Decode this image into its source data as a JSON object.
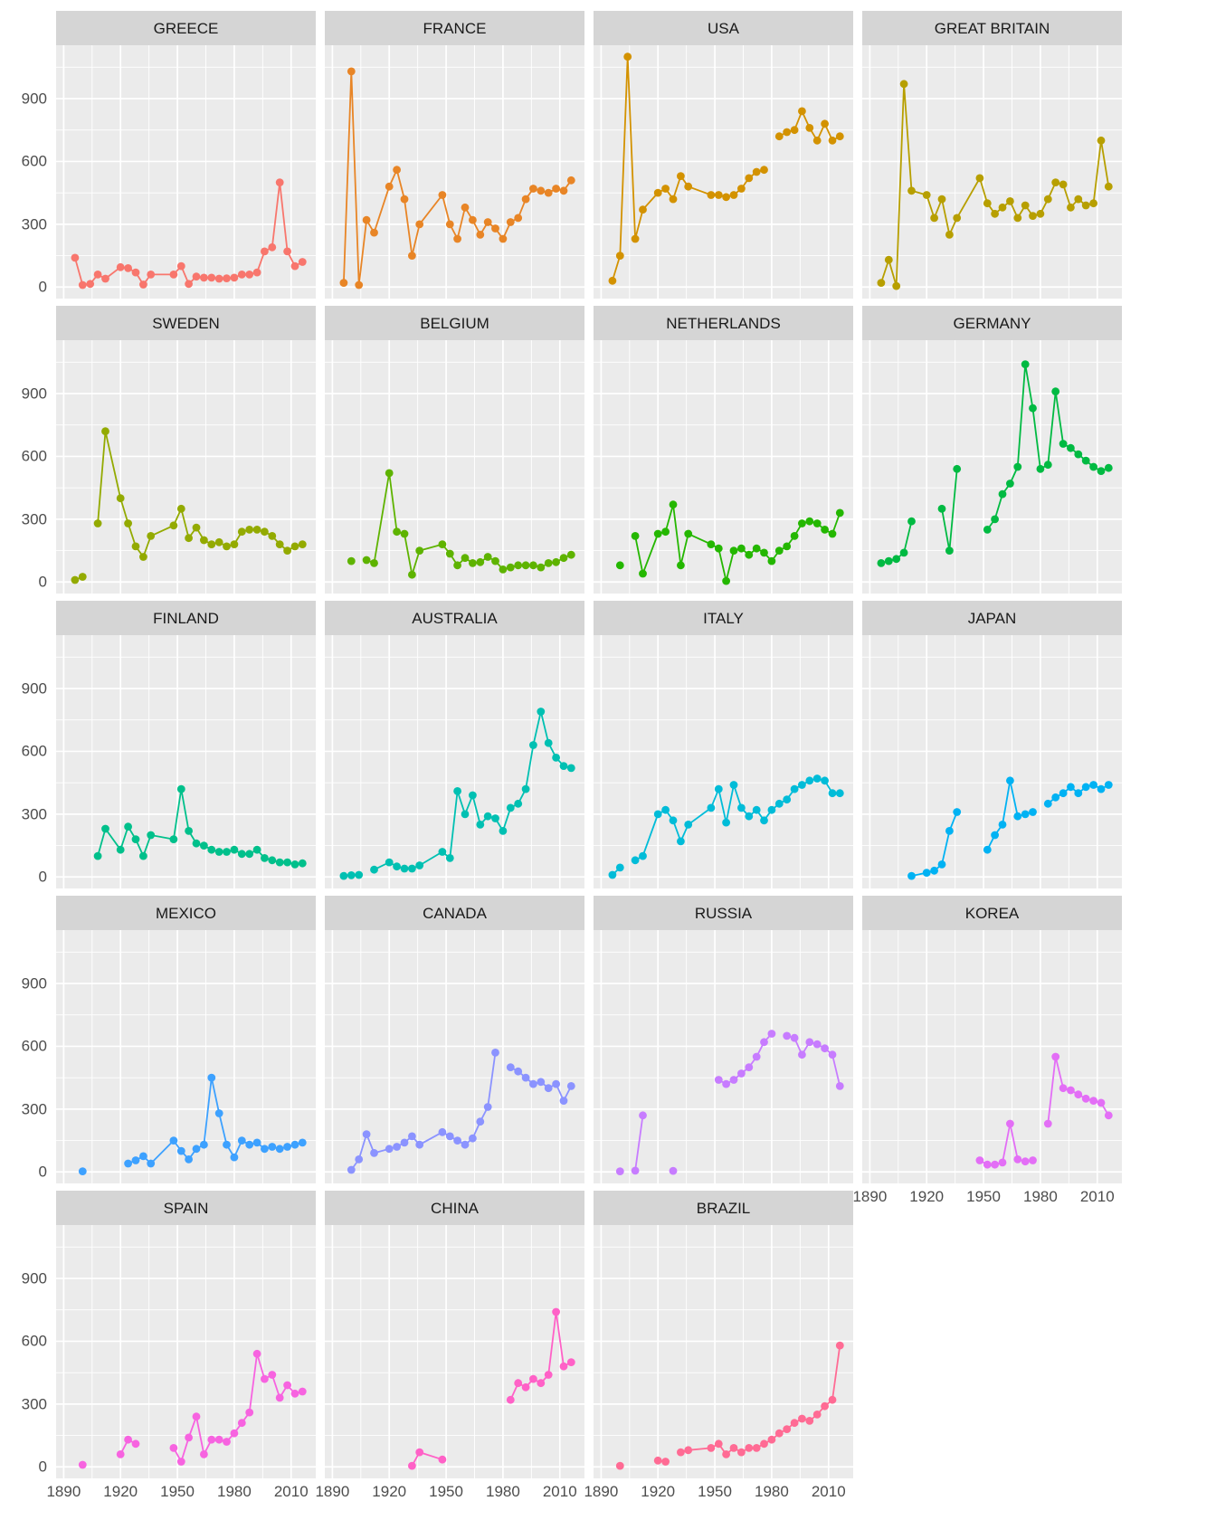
{
  "page": {
    "title": "Faceted line chart of athlete counts by country over Olympic years"
  },
  "theme": {
    "background": "#FFFFFF",
    "panel_bg": "#EBEBEB",
    "strip_bg": "#D5D5D5",
    "strip_text_color": "#1A1A1A",
    "axis_text_color": "#4D4D4D",
    "grid_color": "#FFFFFF"
  },
  "chart_data": {
    "type": "line",
    "title": "",
    "xlabel": "",
    "ylabel": "",
    "facet": true,
    "ncol": 4,
    "legend": "none",
    "grid": true,
    "x_ticks": [
      1890,
      1920,
      1950,
      1980,
      2010
    ],
    "y_ticks": [
      0,
      300,
      600,
      900
    ],
    "x_minor_ticks": [
      1905,
      1935,
      1965,
      1995
    ],
    "y_minor_ticks": [
      150,
      450,
      750,
      1050
    ],
    "xlim": [
      1886,
      2023
    ],
    "ylim": [
      -55,
      1155
    ],
    "years": [
      1896,
      1900,
      1904,
      1908,
      1912,
      1920,
      1924,
      1928,
      1932,
      1936,
      1948,
      1952,
      1956,
      1960,
      1964,
      1968,
      1972,
      1976,
      1980,
      1984,
      1988,
      1992,
      1996,
      2000,
      2004,
      2008,
      2012,
      2016
    ],
    "series": [
      {
        "name": "GREECE",
        "color": "#F8766D",
        "values": [
          140,
          10,
          15,
          60,
          40,
          95,
          90,
          70,
          12,
          60,
          60,
          100,
          15,
          50,
          45,
          45,
          40,
          42,
          45,
          60,
          60,
          70,
          170,
          190,
          500,
          170,
          100,
          120
        ]
      },
      {
        "name": "FRANCE",
        "color": "#E88526",
        "values": [
          20,
          1030,
          10,
          320,
          260,
          480,
          560,
          420,
          150,
          300,
          440,
          300,
          230,
          380,
          320,
          250,
          310,
          280,
          230,
          310,
          330,
          420,
          470,
          460,
          450,
          470,
          460,
          510
        ]
      },
      {
        "name": "USA",
        "color": "#D39200",
        "values": [
          30,
          150,
          1100,
          230,
          370,
          450,
          470,
          420,
          530,
          480,
          440,
          440,
          430,
          440,
          470,
          520,
          550,
          560,
          null,
          720,
          740,
          750,
          840,
          760,
          700,
          780,
          700,
          720
        ]
      },
      {
        "name": "GREAT BRITAIN",
        "color": "#B79F00",
        "values": [
          20,
          130,
          5,
          970,
          460,
          440,
          330,
          420,
          250,
          330,
          520,
          400,
          350,
          380,
          410,
          330,
          390,
          340,
          350,
          420,
          500,
          490,
          380,
          420,
          390,
          400,
          700,
          480
        ]
      },
      {
        "name": "SWEDEN",
        "color": "#93AA00",
        "values": [
          10,
          25,
          null,
          280,
          720,
          400,
          280,
          170,
          120,
          220,
          270,
          350,
          210,
          260,
          200,
          180,
          190,
          170,
          180,
          240,
          250,
          250,
          240,
          220,
          180,
          150,
          170,
          180
        ]
      },
      {
        "name": "BELGIUM",
        "color": "#5EB300",
        "values": [
          null,
          100,
          null,
          105,
          90,
          520,
          240,
          230,
          35,
          150,
          180,
          135,
          80,
          115,
          90,
          95,
          120,
          100,
          60,
          70,
          80,
          80,
          80,
          70,
          90,
          95,
          115,
          130
        ]
      },
      {
        "name": "NETHERLANDS",
        "color": "#24B700",
        "values": [
          null,
          80,
          null,
          220,
          40,
          230,
          240,
          370,
          80,
          230,
          180,
          160,
          5,
          150,
          160,
          130,
          160,
          140,
          100,
          150,
          170,
          220,
          280,
          290,
          280,
          250,
          230,
          330
        ]
      },
      {
        "name": "GERMANY",
        "color": "#00BA42",
        "values": [
          90,
          100,
          110,
          140,
          290,
          null,
          null,
          350,
          150,
          540,
          null,
          250,
          300,
          420,
          470,
          550,
          1040,
          830,
          540,
          560,
          910,
          660,
          640,
          610,
          580,
          550,
          530,
          545
        ]
      },
      {
        "name": "FINLAND",
        "color": "#00C08B",
        "values": [
          null,
          null,
          null,
          100,
          230,
          130,
          240,
          180,
          100,
          200,
          180,
          420,
          220,
          160,
          150,
          130,
          120,
          120,
          130,
          110,
          110,
          130,
          90,
          80,
          70,
          70,
          60,
          65
        ]
      },
      {
        "name": "AUSTRALIA",
        "color": "#00C0B2",
        "values": [
          5,
          8,
          10,
          null,
          35,
          70,
          50,
          40,
          40,
          55,
          120,
          90,
          410,
          300,
          390,
          250,
          290,
          280,
          220,
          330,
          350,
          420,
          630,
          790,
          640,
          570,
          530,
          520
        ]
      },
      {
        "name": "ITALY",
        "color": "#00BCD8",
        "values": [
          10,
          45,
          null,
          80,
          100,
          300,
          320,
          270,
          170,
          250,
          330,
          420,
          260,
          440,
          330,
          290,
          320,
          270,
          320,
          350,
          370,
          420,
          440,
          460,
          470,
          460,
          400,
          400
        ]
      },
      {
        "name": "JAPAN",
        "color": "#00B2F3",
        "values": [
          null,
          null,
          null,
          null,
          5,
          20,
          30,
          60,
          220,
          310,
          null,
          130,
          200,
          250,
          460,
          290,
          300,
          310,
          null,
          350,
          380,
          400,
          430,
          400,
          430,
          440,
          420,
          440
        ]
      },
      {
        "name": "MEXICO",
        "color": "#3DA1FF",
        "values": [
          null,
          3,
          null,
          null,
          null,
          null,
          40,
          55,
          75,
          40,
          150,
          100,
          60,
          110,
          130,
          450,
          280,
          130,
          70,
          150,
          130,
          140,
          110,
          120,
          110,
          120,
          130,
          140
        ]
      },
      {
        "name": "CANADA",
        "color": "#8B93FF",
        "values": [
          null,
          10,
          60,
          180,
          90,
          110,
          120,
          140,
          170,
          130,
          190,
          170,
          150,
          130,
          160,
          240,
          310,
          570,
          null,
          500,
          480,
          450,
          420,
          430,
          400,
          420,
          340,
          410
        ]
      },
      {
        "name": "RUSSIA",
        "color": "#C77CFF",
        "values": [
          null,
          3,
          null,
          6,
          270,
          null,
          null,
          5,
          null,
          null,
          null,
          440,
          420,
          440,
          470,
          500,
          550,
          620,
          660,
          null,
          650,
          640,
          560,
          620,
          610,
          590,
          560,
          410
        ]
      },
      {
        "name": "KOREA",
        "color": "#E36EF6",
        "values": [
          null,
          null,
          null,
          null,
          null,
          null,
          null,
          null,
          null,
          null,
          55,
          35,
          35,
          45,
          230,
          60,
          50,
          55,
          null,
          230,
          550,
          400,
          390,
          370,
          350,
          340,
          330,
          270
        ]
      },
      {
        "name": "SPAIN",
        "color": "#F763E0",
        "values": [
          null,
          10,
          null,
          null,
          null,
          60,
          130,
          110,
          null,
          null,
          90,
          25,
          140,
          240,
          60,
          130,
          130,
          120,
          160,
          210,
          260,
          540,
          420,
          440,
          330,
          390,
          350,
          360
        ]
      },
      {
        "name": "CHINA",
        "color": "#FF61C7",
        "values": [
          null,
          null,
          null,
          null,
          null,
          null,
          null,
          null,
          5,
          70,
          35,
          null,
          null,
          null,
          null,
          null,
          null,
          null,
          null,
          320,
          400,
          380,
          420,
          400,
          440,
          740,
          480,
          500
        ]
      },
      {
        "name": "BRAZIL",
        "color": "#FF6B94",
        "values": [
          null,
          5,
          null,
          null,
          null,
          30,
          25,
          null,
          70,
          80,
          90,
          110,
          60,
          90,
          70,
          90,
          90,
          110,
          130,
          160,
          180,
          210,
          230,
          220,
          250,
          290,
          320,
          580
        ]
      }
    ]
  }
}
